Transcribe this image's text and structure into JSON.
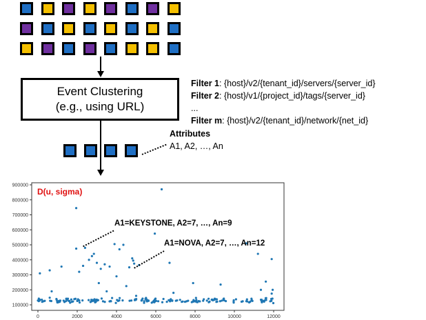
{
  "event_grid": {
    "rows": [
      [
        "blue",
        "yellow",
        "purple",
        "yellow",
        "purple",
        "blue",
        "purple",
        "yellow"
      ],
      [
        "purple",
        "blue",
        "yellow",
        "blue",
        "yellow",
        "blue",
        "yellow",
        "blue"
      ],
      [
        "yellow",
        "purple",
        "blue",
        "purple",
        "blue",
        "yellow",
        "yellow",
        "blue"
      ]
    ]
  },
  "colors": {
    "blue": "#1f6fc4",
    "yellow": "#f5c000",
    "purple": "#7030a0",
    "point": "#1f77b4",
    "title_red": "#e01010"
  },
  "cluster_box": {
    "line1": "Event Clustering",
    "line2": "(e.g., using URL)"
  },
  "filters": [
    {
      "label": "Filter 1",
      "pattern": ": {host}/v2/{tenant_id}/servers/{server_id}"
    },
    {
      "label": "Filter 2",
      "pattern": ": {host}/v1/{project_id}/tags/{server_id}"
    },
    {
      "label": "",
      "pattern": "..."
    },
    {
      "label": "Filter m",
      "pattern": ": {host}/v2/{tenant_id}/network/{net_id}"
    }
  ],
  "clustered_events": [
    "blue",
    "blue",
    "blue",
    "blue"
  ],
  "attributes": {
    "title": "Attributes",
    "values": "A1, A2, …, An"
  },
  "chart_data": {
    "type": "scatter",
    "title": "D(u, sigma)",
    "xlim": [
      0,
      12000
    ],
    "ylim": [
      100000,
      900000
    ],
    "x_ticks": [
      "0",
      "2000",
      "4000",
      "6000",
      "8000",
      "10000",
      "12000"
    ],
    "y_ticks": [
      "100000",
      "200000",
      "300000",
      "400000",
      "500000",
      "600000",
      "700000",
      "800000",
      "900000"
    ],
    "annotations": [
      {
        "text": "A1=KEYSTONE, A2=7, …, An=9",
        "x": 2300,
        "y": 480000
      },
      {
        "text": "A1=NOVA, A2=7, …, An=12",
        "x": 4900,
        "y": 345000
      }
    ],
    "outliers": [
      [
        100,
        310000
      ],
      [
        600,
        330000
      ],
      [
        700,
        190000
      ],
      [
        1200,
        355000
      ],
      [
        1950,
        745000
      ],
      [
        1950,
        475000
      ],
      [
        2100,
        320000
      ],
      [
        2300,
        360000
      ],
      [
        2400,
        480000
      ],
      [
        2600,
        400000
      ],
      [
        2750,
        425000
      ],
      [
        2850,
        440000
      ],
      [
        3000,
        380000
      ],
      [
        3100,
        245000
      ],
      [
        3200,
        340000
      ],
      [
        3400,
        370000
      ],
      [
        3500,
        190000
      ],
      [
        3650,
        355000
      ],
      [
        3900,
        505000
      ],
      [
        4000,
        290000
      ],
      [
        4150,
        470000
      ],
      [
        4350,
        500000
      ],
      [
        4500,
        225000
      ],
      [
        4650,
        350000
      ],
      [
        4800,
        410000
      ],
      [
        4850,
        395000
      ],
      [
        4900,
        375000
      ],
      [
        5000,
        160000
      ],
      [
        5150,
        365000
      ],
      [
        5950,
        575000
      ],
      [
        6300,
        870000
      ],
      [
        6700,
        380000
      ],
      [
        6900,
        180000
      ],
      [
        7900,
        245000
      ],
      [
        9300,
        235000
      ],
      [
        10600,
        510000
      ],
      [
        11200,
        440000
      ],
      [
        11350,
        200000
      ],
      [
        11600,
        255000
      ],
      [
        11900,
        405000
      ],
      [
        11900,
        175000
      ],
      [
        11950,
        200000
      ]
    ],
    "baseline": {
      "x_range": [
        0,
        12000
      ],
      "y_mean": 130000,
      "y_spread": 12000,
      "count": 190
    }
  }
}
